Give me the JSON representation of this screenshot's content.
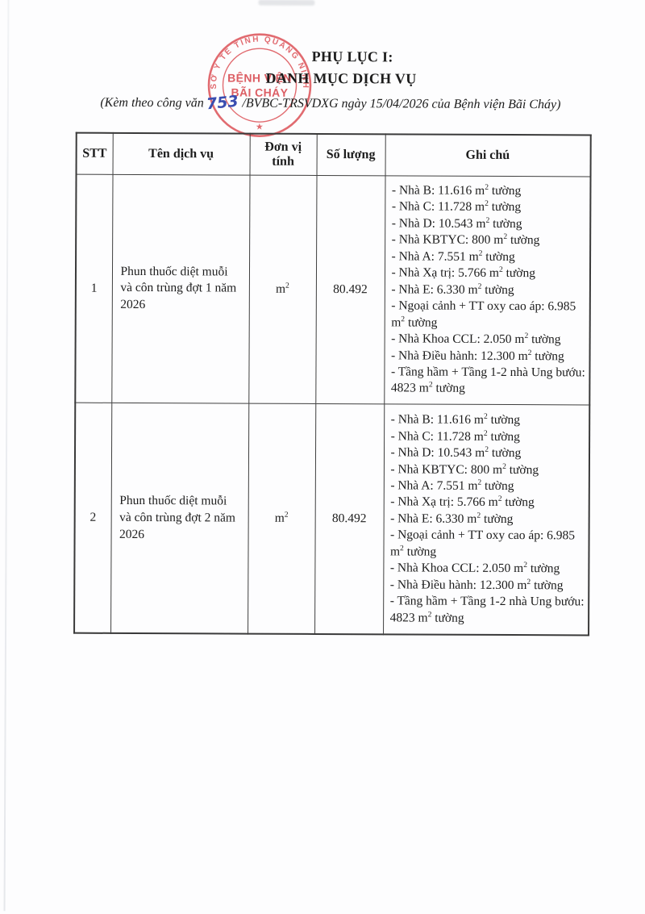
{
  "header": {
    "title_line1": "PHỤ LỤC I:",
    "title_line2": "DANH MỤC DỊCH VỤ",
    "subtitle_prefix": "(Kèm theo công văn",
    "handwritten_number": "753",
    "subtitle_suffix": "/BVBC-TRSVDXG ngày 15/04/2026 của Bệnh viện Bãi Cháy)"
  },
  "stamp": {
    "ring_text": "SỞ Y TẾ TỈNH QUẢNG NINH",
    "center_line1": "BỆNH VIỆN",
    "center_line2": "BÃI CHÁY",
    "star": "★",
    "color": "#dd565c"
  },
  "table": {
    "headers": [
      "STT",
      "Tên dịch vụ",
      "Đơn vị tính",
      "Số lượng",
      "Ghi chú"
    ],
    "rows": [
      {
        "stt": "1",
        "service": "Phun thuốc diệt muỗi và côn trùng đợt 1 năm 2026",
        "unit": "m²",
        "quantity": "80.492",
        "notes": [
          "- Nhà B: 11.616 m² tường",
          "- Nhà C: 11.728 m² tường",
          "- Nhà D: 10.543 m² tường",
          "- Nhà KBTYC: 800 m² tường",
          "- Nhà A: 7.551 m² tường",
          "- Nhà Xạ trị: 5.766 m² tường",
          "- Nhà E: 6.330 m² tường",
          "- Ngoại cảnh + TT oxy cao áp: 6.985 m² tường",
          "- Nhà Khoa CCL: 2.050 m² tường",
          "- Nhà Điều hành: 12.300 m² tường",
          "- Tầng hầm + Tầng 1-2 nhà Ung bướu: 4823 m² tường"
        ]
      },
      {
        "stt": "2",
        "service": "Phun thuốc diệt muỗi và côn trùng đợt 2 năm 2026",
        "unit": "m²",
        "quantity": "80.492",
        "notes": [
          "- Nhà B: 11.616 m² tường",
          "- Nhà C: 11.728 m² tường",
          "- Nhà D: 10.543 m² tường",
          "- Nhà KBTYC: 800 m² tường",
          "- Nhà A: 7.551 m² tường",
          "- Nhà Xạ trị: 5.766 m² tường",
          "- Nhà E: 6.330 m² tường",
          "- Ngoại cảnh + TT oxy cao áp: 6.985 m² tường",
          "- Nhà Khoa CCL: 2.050 m² tường",
          "- Nhà Điều hành: 12.300 m² tường",
          "- Tầng hầm + Tầng 1-2 nhà Ung bướu: 4823 m² tường"
        ]
      }
    ]
  }
}
